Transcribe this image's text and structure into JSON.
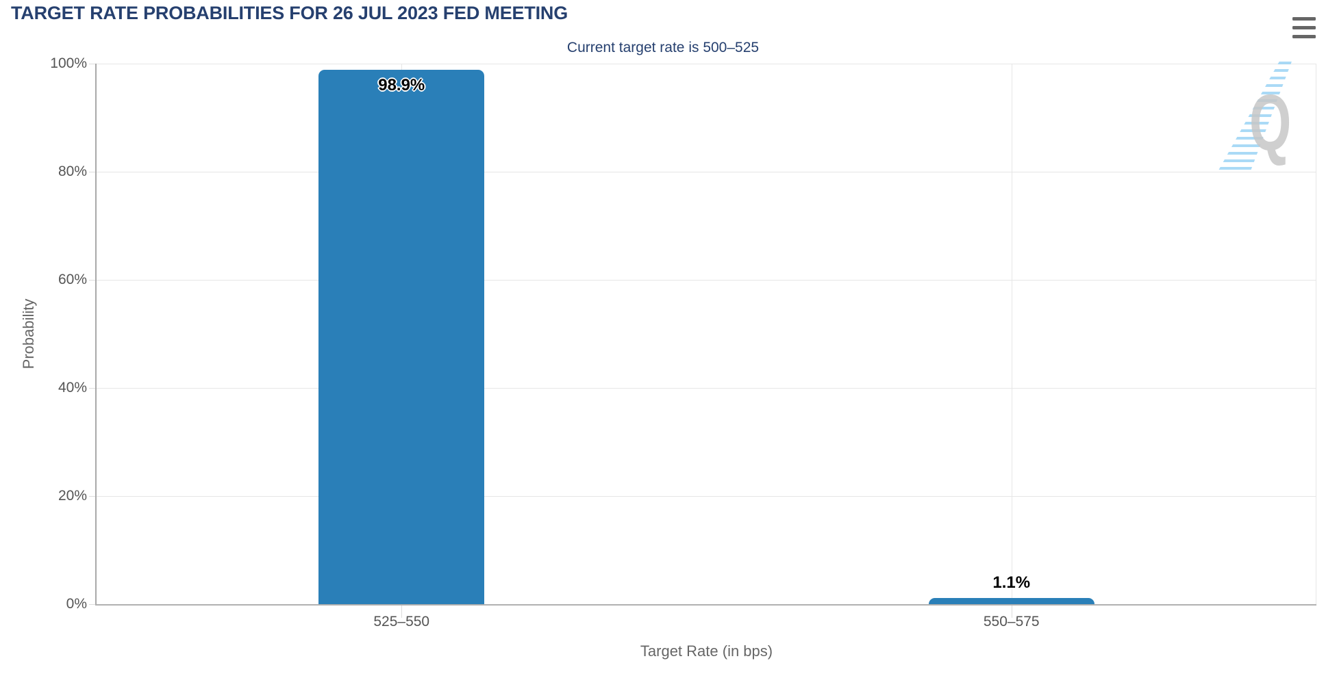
{
  "page": {
    "title": "TARGET RATE PROBABILITIES FOR 26 JUL 2023 FED MEETING",
    "subtitle": "Current target rate is 500–525",
    "watermark_letter": "Q"
  },
  "icons": {
    "menu": "hamburger-menu-icon"
  },
  "colors": {
    "bar": "#2a7fb8",
    "title_navy": "#26406f",
    "axis_text_gray": "#555555",
    "axis_title_gray": "#666666",
    "gridline": "#e6e6e6",
    "axis_line": "#a9a9a9",
    "menu_icon": "#666666",
    "watermark_gray": "#c7c7c7",
    "watermark_blue": "#8ecef3"
  },
  "chart_data": {
    "type": "bar",
    "title": "TARGET RATE PROBABILITIES FOR 26 JUL 2023 FED MEETING",
    "subtitle": "Current target rate is 500–525",
    "categories": [
      "525–550",
      "550–575"
    ],
    "values": [
      98.9,
      1.1
    ],
    "value_labels": [
      "98.9%",
      "1.1%"
    ],
    "xlabel": "Target Rate (in bps)",
    "ylabel": "Probability",
    "ylim": [
      0,
      100
    ],
    "ytick_interval": 20,
    "yticks": [
      "0%",
      "20%",
      "40%",
      "60%",
      "80%",
      "100%"
    ],
    "grid": true,
    "legend": false,
    "bar_color": "#2a7fb8"
  }
}
